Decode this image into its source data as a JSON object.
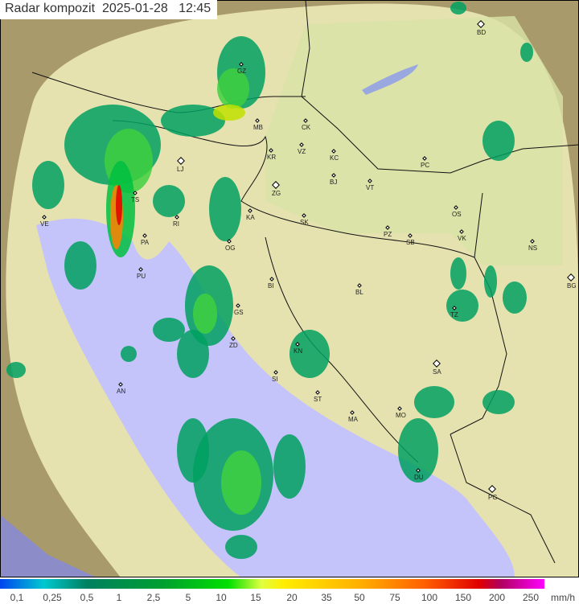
{
  "title": {
    "label": "Radar kompozit",
    "date": "2025-01-28",
    "time": "12:45"
  },
  "legend": {
    "values": [
      "0,1",
      "0,25",
      "0,5",
      "1",
      "2,5",
      "5",
      "10",
      "15",
      "20",
      "35",
      "50",
      "75",
      "100",
      "150",
      "200",
      "250"
    ],
    "unit": "mm/h"
  },
  "colors": {
    "sea_inside": "#c4c4fa",
    "sea_outside": "#8c8cc8",
    "land_inside": "#e6e2b0",
    "land_outside": "#a89a6a",
    "rain_light": "#00a060",
    "rain_mid": "#40d040",
    "rain_heavy": "#ff2020"
  },
  "cities": [
    {
      "code": "BD",
      "type": "diamond"
    },
    {
      "code": "GZ",
      "type": "dot"
    },
    {
      "code": "MB",
      "type": "dot"
    },
    {
      "code": "CK",
      "type": "dot"
    },
    {
      "code": "VZ",
      "type": "dot"
    },
    {
      "code": "KR",
      "type": "dot"
    },
    {
      "code": "KC",
      "type": "dot"
    },
    {
      "code": "LJ",
      "type": "diamond"
    },
    {
      "code": "BJ",
      "type": "dot"
    },
    {
      "code": "PC",
      "type": "dot"
    },
    {
      "code": "VT",
      "type": "dot"
    },
    {
      "code": "ZG",
      "type": "diamond"
    },
    {
      "code": "TS",
      "type": "dot"
    },
    {
      "code": "OS",
      "type": "dot"
    },
    {
      "code": "KA",
      "type": "dot"
    },
    {
      "code": "SK",
      "type": "dot"
    },
    {
      "code": "VE",
      "type": "dot"
    },
    {
      "code": "RI",
      "type": "dot"
    },
    {
      "code": "PZ",
      "type": "dot"
    },
    {
      "code": "SB",
      "type": "dot"
    },
    {
      "code": "VK",
      "type": "dot"
    },
    {
      "code": "NS",
      "type": "dot"
    },
    {
      "code": "PA",
      "type": "dot"
    },
    {
      "code": "OG",
      "type": "dot"
    },
    {
      "code": "PU",
      "type": "dot"
    },
    {
      "code": "BG",
      "type": "diamond"
    },
    {
      "code": "BI",
      "type": "dot"
    },
    {
      "code": "BL",
      "type": "dot"
    },
    {
      "code": "GS",
      "type": "dot"
    },
    {
      "code": "TZ",
      "type": "dot"
    },
    {
      "code": "ZD",
      "type": "dot"
    },
    {
      "code": "KN",
      "type": "dot"
    },
    {
      "code": "SA",
      "type": "diamond"
    },
    {
      "code": "SI",
      "type": "dot"
    },
    {
      "code": "AN",
      "type": "dot"
    },
    {
      "code": "ST",
      "type": "dot"
    },
    {
      "code": "MO",
      "type": "dot"
    },
    {
      "code": "MA",
      "type": "dot"
    },
    {
      "code": "DU",
      "type": "dot"
    },
    {
      "code": "PG",
      "type": "diamond"
    }
  ]
}
